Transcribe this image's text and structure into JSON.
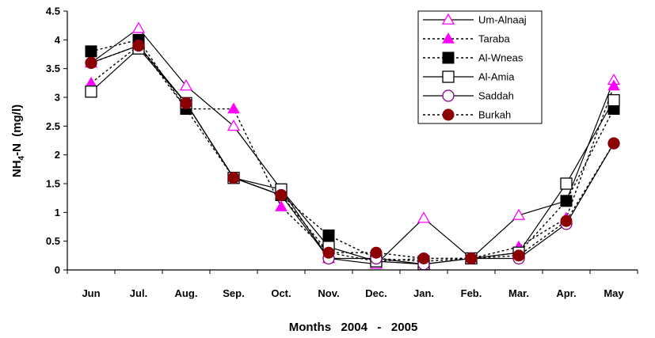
{
  "chart_data": {
    "type": "line",
    "xlabel": "Months   2004   -   2005",
    "ylabel_main": "NH",
    "ylabel_sub": "4",
    "ylabel_rest": "-N  (mg/l)",
    "categories": [
      "Jun",
      "Jul.",
      "Aug.",
      "Sep.",
      "Oct.",
      "Nov.",
      "Dec.",
      "Jan.",
      "Feb.",
      "Mar.",
      "Apr.",
      "May"
    ],
    "ylim": [
      0,
      4.5
    ],
    "yticks": [
      "0",
      "0.5",
      "1",
      "1.5",
      "2",
      "2.5",
      "3",
      "3.5",
      "4",
      "4.5"
    ],
    "grid": false,
    "legend_position": "top-right",
    "series": [
      {
        "name": "Um-Alnaaj",
        "marker": "triangle-open",
        "line": "solid",
        "color": "#ff00ff",
        "values": [
          3.6,
          4.2,
          3.2,
          2.5,
          1.4,
          0.2,
          0.1,
          0.9,
          0.2,
          0.95,
          1.2,
          3.3
        ]
      },
      {
        "name": "Taraba",
        "marker": "triangle-filled",
        "line": "dotted",
        "color": "#ff00ff",
        "values": [
          3.25,
          3.9,
          2.8,
          2.8,
          1.1,
          0.3,
          0.15,
          0.2,
          0.2,
          0.4,
          0.9,
          3.2
        ]
      },
      {
        "name": "Al-Wneas",
        "marker": "square-filled",
        "line": "dotted",
        "color": "#000000",
        "values": [
          3.8,
          4.0,
          2.8,
          1.6,
          1.3,
          0.6,
          0.2,
          0.15,
          0.2,
          0.3,
          1.2,
          2.8
        ]
      },
      {
        "name": "Al-Amia",
        "marker": "square-open",
        "line": "solid",
        "color": "#000000",
        "values": [
          3.1,
          3.85,
          2.9,
          1.6,
          1.4,
          0.4,
          0.15,
          0.1,
          0.2,
          0.3,
          1.5,
          2.95
        ]
      },
      {
        "name": "Saddah",
        "marker": "circle-open",
        "line": "solid",
        "color": "#800080",
        "values": [
          3.6,
          3.9,
          2.9,
          1.6,
          1.3,
          0.2,
          0.2,
          0.1,
          0.2,
          0.2,
          0.8,
          2.2
        ]
      },
      {
        "name": "Burkah",
        "marker": "circle-filled",
        "line": "dotted",
        "color": "#8b0000",
        "values": [
          3.6,
          3.9,
          2.9,
          1.6,
          1.3,
          0.3,
          0.3,
          0.2,
          0.2,
          0.25,
          0.85,
          2.2
        ]
      }
    ]
  }
}
